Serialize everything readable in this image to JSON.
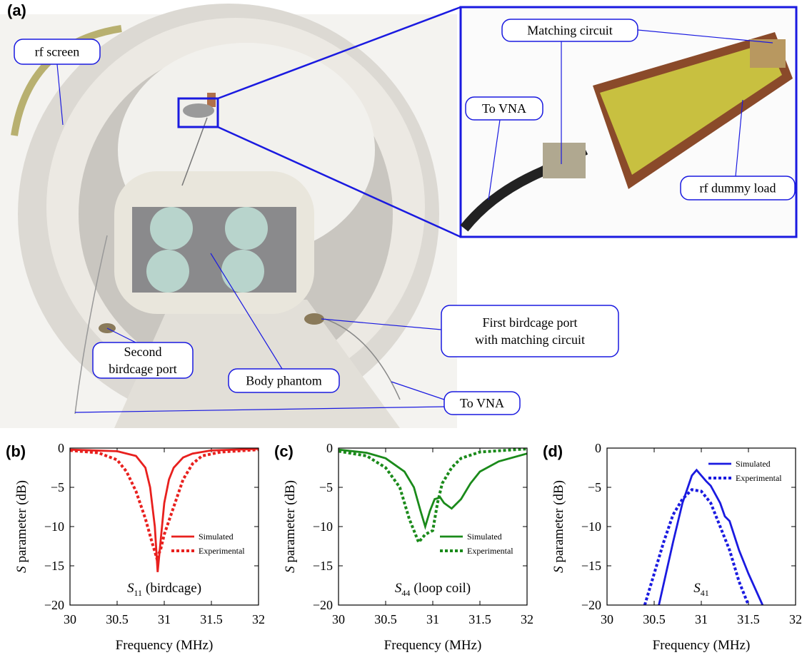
{
  "panel_a": {
    "label": "(a)",
    "callouts": [
      {
        "lines": [
          "rf screen"
        ]
      },
      {
        "lines": [
          "Matching circuit"
        ]
      },
      {
        "lines": [
          "To VNA"
        ]
      },
      {
        "lines": [
          "rf dummy load"
        ]
      },
      {
        "lines": [
          "First birdcage port",
          "with matching circuit"
        ]
      },
      {
        "lines": [
          "Second",
          "birdcage port"
        ]
      },
      {
        "lines": [
          "Body phantom"
        ]
      },
      {
        "lines": [
          "To VNA"
        ]
      }
    ]
  },
  "chart_data": [
    {
      "type": "line",
      "panel_label": "(b)",
      "ylabel_symbol": "S",
      "ylabel": "parameter (dB)",
      "xlabel": "Frequency (MHz)",
      "annotation_symbol": "S",
      "annotation_subscript": "11",
      "annotation_text": "(birdcage)",
      "xlim": [
        30,
        32
      ],
      "xticks": [
        30,
        30.5,
        31,
        31.5,
        32
      ],
      "ylim": [
        -20,
        0
      ],
      "yticks": [
        0,
        {
          "value": -5,
          "label": "−5"
        },
        {
          "value": -10,
          "label": "−10"
        },
        {
          "value": -15,
          "label": "−15"
        },
        {
          "value": -20,
          "label": "−20"
        }
      ],
      "legend": "lower right",
      "series": [
        {
          "name": "Simulated",
          "color": "#e8201e",
          "line_style": "solid",
          "x": [
            30,
            30.5,
            30.7,
            30.8,
            30.85,
            30.9,
            30.93,
            30.96,
            31.0,
            31.05,
            31.1,
            31.2,
            31.3,
            31.5,
            32
          ],
          "values": [
            -0.2,
            -0.4,
            -1,
            -2.5,
            -5,
            -10,
            -15.8,
            -12,
            -7,
            -4,
            -2.5,
            -1.2,
            -0.7,
            -0.3,
            -0.1
          ]
        },
        {
          "name": "Experimental",
          "color": "#e8201e",
          "line_style": "dotted",
          "x": [
            30,
            30.3,
            30.5,
            30.6,
            30.7,
            30.8,
            30.87,
            30.92,
            30.96,
            31.0,
            31.1,
            31.2,
            31.3,
            31.4,
            31.6,
            32
          ],
          "values": [
            -0.3,
            -0.6,
            -1.5,
            -3,
            -5.5,
            -9,
            -12,
            -14,
            -13,
            -11,
            -7.5,
            -4,
            -2,
            -1,
            -0.5,
            -0.2
          ]
        }
      ]
    },
    {
      "type": "line",
      "panel_label": "(c)",
      "ylabel_symbol": "S",
      "ylabel": "parameter (dB)",
      "xlabel": "Frequency (MHz)",
      "annotation_symbol": "S",
      "annotation_subscript": "44",
      "annotation_text": "(loop coil)",
      "xlim": [
        30,
        32
      ],
      "xticks": [
        30,
        30.5,
        31,
        31.5,
        32
      ],
      "ylim": [
        -20,
        0
      ],
      "yticks": [
        0,
        {
          "value": -5,
          "label": "−5"
        },
        {
          "value": -10,
          "label": "−10"
        },
        {
          "value": -15,
          "label": "−15"
        },
        {
          "value": -20,
          "label": "−20"
        }
      ],
      "legend": "lower right",
      "series": [
        {
          "name": "Simulated",
          "color": "#1a8a1a",
          "line_style": "solid",
          "x": [
            30,
            30.3,
            30.5,
            30.7,
            30.8,
            30.87,
            30.92,
            30.97,
            31.02,
            31.08,
            31.12,
            31.2,
            31.3,
            31.4,
            31.5,
            31.7,
            32
          ],
          "values": [
            -0.2,
            -0.6,
            -1.3,
            -3,
            -5,
            -8,
            -10,
            -8,
            -6.5,
            -6.3,
            -7,
            -7.7,
            -6.5,
            -4.5,
            -3,
            -1.7,
            -0.7
          ]
        },
        {
          "name": "Experimental",
          "color": "#1a8a1a",
          "line_style": "dotted",
          "x": [
            30,
            30.3,
            30.5,
            30.65,
            30.75,
            30.85,
            30.92,
            31.0,
            31.05,
            31.1,
            31.2,
            31.3,
            31.5,
            32
          ],
          "values": [
            -0.4,
            -1,
            -2.5,
            -5,
            -9,
            -12,
            -11,
            -10.5,
            -7,
            -4.5,
            -2.5,
            -1.3,
            -0.5,
            -0.1
          ]
        }
      ]
    },
    {
      "type": "line",
      "panel_label": "(d)",
      "ylabel_symbol": "S",
      "ylabel": "parameter (dB)",
      "xlabel": "Frequency (MHz)",
      "annotation_symbol": "S",
      "annotation_subscript": "41",
      "xlim": [
        30,
        32
      ],
      "xticks": [
        30,
        30.5,
        31,
        31.5,
        32
      ],
      "ylim": [
        -20,
        0
      ],
      "yticks": [
        0,
        {
          "value": -5,
          "label": "−5"
        },
        {
          "value": -10,
          "label": "−10"
        },
        {
          "value": -15,
          "label": "−15"
        },
        {
          "value": -20,
          "label": "−20"
        }
      ],
      "legend": "upper right",
      "series": [
        {
          "name": "Simulated",
          "color": "#1a1ae0",
          "line_style": "solid",
          "x": [
            30.55,
            30.7,
            30.8,
            30.9,
            30.95,
            31.0,
            31.05,
            31.1,
            31.2,
            31.25,
            31.3,
            31.4,
            31.5,
            31.65
          ],
          "values": [
            -20,
            -12,
            -7,
            -3.5,
            -2.8,
            -3.5,
            -4.2,
            -4.8,
            -7,
            -8.7,
            -9.3,
            -13,
            -16,
            -20
          ]
        },
        {
          "name": "Experimental",
          "color": "#1a1ae0",
          "line_style": "dotted",
          "x": [
            30.4,
            30.5,
            30.6,
            30.7,
            30.8,
            30.9,
            31.0,
            31.1,
            31.2,
            31.3,
            31.4,
            31.5
          ],
          "values": [
            -20,
            -16,
            -12,
            -8.5,
            -6.5,
            -5.3,
            -5.5,
            -7,
            -10,
            -13,
            -17,
            -20
          ]
        }
      ]
    }
  ]
}
